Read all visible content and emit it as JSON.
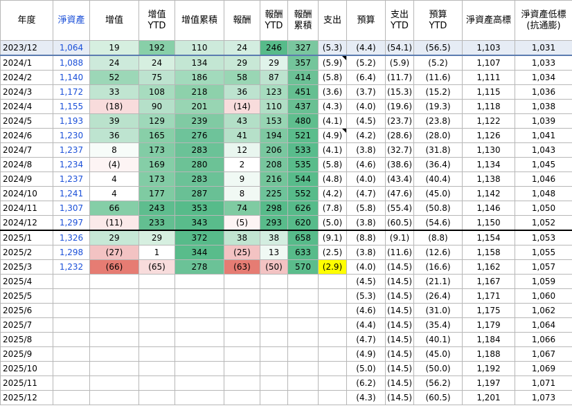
{
  "headers": [
    "年度",
    "淨資產",
    "增值",
    "增值\nYTD",
    "增值累積",
    "報酬",
    "報酬\nYTD",
    "報酬\n累積",
    "支出",
    "預算",
    "支出\nYTD",
    "預算\nYTD",
    "淨資產高標",
    "淨資產低標\n(抗通膨)"
  ],
  "rows": [
    [
      "2023/12",
      "1,064",
      "19",
      "192",
      "110",
      "24",
      "246",
      "327",
      "(5.3)",
      "(4.4)",
      "(54.1)",
      "(56.5)",
      "1,103",
      "1,031"
    ],
    [
      "2024/1",
      "1,088",
      "24",
      "24",
      "134",
      "29",
      "29",
      "357",
      "(5.9)",
      "(5.2)",
      "(5.9)",
      "(5.2)",
      "1,107",
      "1,033"
    ],
    [
      "2024/2",
      "1,140",
      "52",
      "75",
      "186",
      "58",
      "87",
      "414",
      "(5.8)",
      "(6.4)",
      "(11.7)",
      "(11.6)",
      "1,111",
      "1,034"
    ],
    [
      "2024/3",
      "1,172",
      "33",
      "108",
      "218",
      "36",
      "123",
      "451",
      "(3.6)",
      "(3.7)",
      "(15.3)",
      "(15.2)",
      "1,115",
      "1,036"
    ],
    [
      "2024/4",
      "1,155",
      "(18)",
      "90",
      "201",
      "(14)",
      "110",
      "437",
      "(4.3)",
      "(4.0)",
      "(19.6)",
      "(19.3)",
      "1,118",
      "1,038"
    ],
    [
      "2024/5",
      "1,193",
      "39",
      "129",
      "239",
      "43",
      "153",
      "480",
      "(4.1)",
      "(4.5)",
      "(23.7)",
      "(23.8)",
      "1,122",
      "1,039"
    ],
    [
      "2024/6",
      "1,230",
      "36",
      "165",
      "276",
      "41",
      "194",
      "521",
      "(4.9)",
      "(4.2)",
      "(28.6)",
      "(28.0)",
      "1,126",
      "1,041"
    ],
    [
      "2024/7",
      "1,237",
      "8",
      "173",
      "283",
      "12",
      "206",
      "533",
      "(4.1)",
      "(3.8)",
      "(32.7)",
      "(31.8)",
      "1,130",
      "1,043"
    ],
    [
      "2024/8",
      "1,234",
      "(4)",
      "169",
      "280",
      "2",
      "208",
      "535",
      "(5.8)",
      "(4.6)",
      "(38.6)",
      "(36.4)",
      "1,134",
      "1,045"
    ],
    [
      "2024/9",
      "1,237",
      "4",
      "173",
      "283",
      "9",
      "216",
      "544",
      "(4.8)",
      "(4.0)",
      "(43.4)",
      "(40.4)",
      "1,138",
      "1,046"
    ],
    [
      "2024/10",
      "1,241",
      "4",
      "177",
      "287",
      "8",
      "225",
      "552",
      "(4.2)",
      "(4.7)",
      "(47.6)",
      "(45.0)",
      "1,142",
      "1,048"
    ],
    [
      "2024/11",
      "1,307",
      "66",
      "243",
      "353",
      "74",
      "298",
      "626",
      "(7.8)",
      "(5.8)",
      "(55.4)",
      "(50.8)",
      "1,146",
      "1,050"
    ],
    [
      "2024/12",
      "1,297",
      "(11)",
      "233",
      "343",
      "(5)",
      "293",
      "620",
      "(5.0)",
      "(3.8)",
      "(60.5)",
      "(54.6)",
      "1,150",
      "1,052"
    ],
    [
      "2025/1",
      "1,326",
      "29",
      "29",
      "372",
      "38",
      "38",
      "658",
      "(9.1)",
      "(8.8)",
      "(9.1)",
      "(8.8)",
      "1,154",
      "1,053"
    ],
    [
      "2025/2",
      "1,298",
      "(27)",
      "1",
      "344",
      "(25)",
      "13",
      "633",
      "(2.5)",
      "(3.8)",
      "(11.6)",
      "(12.6)",
      "1,158",
      "1,055"
    ],
    [
      "2025/3",
      "1,232",
      "(66)",
      "(65)",
      "278",
      "(63)",
      "(50)",
      "570",
      "(2.9)",
      "(4.0)",
      "(14.5)",
      "(16.6)",
      "1,162",
      "1,057"
    ],
    [
      "2025/4",
      "",
      "",
      "",
      "",
      "",
      "",
      "",
      "",
      "(4.5)",
      "(14.5)",
      "(21.1)",
      "1,167",
      "1,059"
    ],
    [
      "2025/5",
      "",
      "",
      "",
      "",
      "",
      "",
      "",
      "",
      "(5.3)",
      "(14.5)",
      "(26.4)",
      "1,171",
      "1,060"
    ],
    [
      "2025/6",
      "",
      "",
      "",
      "",
      "",
      "",
      "",
      "",
      "(4.6)",
      "(14.5)",
      "(31.0)",
      "1,175",
      "1,062"
    ],
    [
      "2025/7",
      "",
      "",
      "",
      "",
      "",
      "",
      "",
      "",
      "(4.4)",
      "(14.5)",
      "(35.4)",
      "1,179",
      "1,064"
    ],
    [
      "2025/8",
      "",
      "",
      "",
      "",
      "",
      "",
      "",
      "",
      "(4.7)",
      "(14.5)",
      "(40.1)",
      "1,184",
      "1,066"
    ],
    [
      "2025/9",
      "",
      "",
      "",
      "",
      "",
      "",
      "",
      "",
      "(4.9)",
      "(14.5)",
      "(45.0)",
      "1,188",
      "1,067"
    ],
    [
      "2025/10",
      "",
      "",
      "",
      "",
      "",
      "",
      "",
      "",
      "(5.0)",
      "(14.5)",
      "(50.0)",
      "1,192",
      "1,069"
    ],
    [
      "2025/11",
      "",
      "",
      "",
      "",
      "",
      "",
      "",
      "",
      "(6.2)",
      "(14.5)",
      "(56.2)",
      "1,197",
      "1,071"
    ],
    [
      "2025/12",
      "",
      "",
      "",
      "",
      "",
      "",
      "",
      "",
      "(4.3)",
      "(14.5)",
      "(60.5)",
      "1,201",
      "1,073"
    ]
  ],
  "cell_colors": {
    "0": {
      "2": "#d6efe0",
      "3": "#88cfa8",
      "4": "#cdeadb",
      "5": "#d3ede0",
      "6": "#57bb8a",
      "7": "#7ac79f"
    },
    "1": {
      "2": "#cdeadb",
      "3": "#d6efe0",
      "4": "#c3e6d3",
      "5": "#c8e8d6",
      "6": "#e0f3ea",
      "7": "#74c59b"
    },
    "2": {
      "2": "#9cd7b7",
      "3": "#bde3cf",
      "4": "#a2dabc",
      "5": "#99d6b4",
      "6": "#bde3cf",
      "7": "#6cc196"
    },
    "3": {
      "2": "#c0e5d1",
      "3": "#a7dcbf",
      "4": "#8dd1ab",
      "5": "#bde3cf",
      "6": "#a7dcbf",
      "7": "#65bf91"
    },
    "4": {
      "2": "#f8dcdc",
      "3": "#b5e0c9",
      "4": "#98d5b3",
      "5": "#f8dcdc",
      "6": "#b0dec5",
      "7": "#69c093"
    },
    "5": {
      "2": "#bae2cc",
      "3": "#9ed8b9",
      "4": "#80caa3",
      "5": "#b3dfc7",
      "6": "#97d5b3",
      "7": "#5fbe8e"
    },
    "6": {
      "2": "#bee4d0",
      "3": "#88cfa8",
      "4": "#6ec39a",
      "5": "#b6e0c9",
      "6": "#7fc9a2",
      "7": "#5bbd8c"
    },
    "7": {
      "2": "#f7fcf9",
      "3": "#82cca5",
      "4": "#6bc297",
      "5": "#e9f6ef",
      "6": "#79c79f",
      "7": "#59bc8c"
    },
    "8": {
      "2": "#fdf4f4",
      "3": "#85cea7",
      "4": "#6cc296",
      "5": "#ffffff",
      "6": "#78c69e",
      "7": "#59bc8b"
    },
    "9": {
      "2": "#ffffff",
      "3": "#82cca5",
      "4": "#6bc297",
      "5": "#f0f9f4",
      "6": "#73c59a",
      "7": "#58bc8b"
    },
    "10": {
      "2": "#ffffff",
      "3": "#7fcba2",
      "4": "#69c095",
      "5": "#f1f9f4",
      "6": "#6ec39a",
      "7": "#57bb8a"
    },
    "11": {
      "2": "#85cea7",
      "3": "#5ebd8e",
      "4": "#57bb8a",
      "5": "#7fcba2",
      "6": "#57bb8a",
      "7": "#57bb8a"
    },
    "12": {
      "2": "#fbe9e9",
      "3": "#63bf91",
      "4": "#59bc8b",
      "5": "#fdf4f4",
      "6": "#59bc8b",
      "7": "#57bb8a"
    },
    "13": {
      "2": "#c6e8d6",
      "3": "#d6efe0",
      "4": "#57bb8a",
      "5": "#c1e5d1",
      "6": "#d3ede0",
      "7": "#57bb8a"
    },
    "14": {
      "2": "#f3c3c3",
      "3": "#ffffff",
      "4": "#59bc8b",
      "5": "#f3c3c3",
      "6": "#f0f9f4",
      "7": "#57bb8a"
    },
    "15": {
      "2": "#e67c73",
      "3": "#f8dcdc",
      "4": "#6bc297",
      "5": "#e67c73",
      "6": "#f3c3c3",
      "7": "#5bbd8c",
      "8": "#ffff00"
    }
  },
  "first_row_bg": "#e6ecf5",
  "nav_color": "#1a4fd8",
  "corner_marker_cells": [
    [
      "1",
      "8"
    ],
    [
      "6",
      "8"
    ]
  ]
}
